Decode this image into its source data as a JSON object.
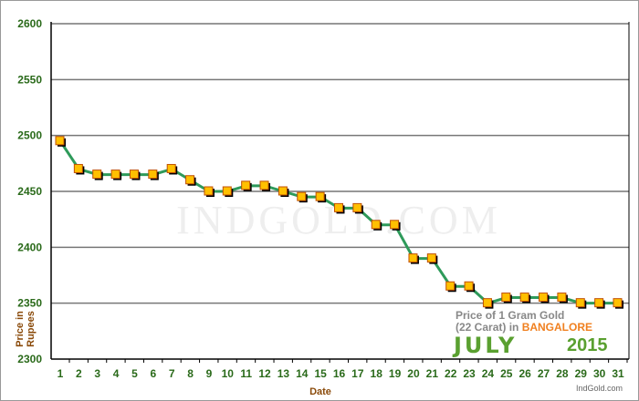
{
  "chart_data": {
    "type": "line",
    "xlabel": "Date",
    "ylabel": "Price in Rupees",
    "ylim": [
      2300,
      2600
    ],
    "yticks": [
      2300,
      2350,
      2400,
      2450,
      2500,
      2550,
      2600
    ],
    "grid": true,
    "x": [
      1,
      2,
      3,
      4,
      5,
      6,
      7,
      8,
      9,
      10,
      11,
      12,
      13,
      14,
      15,
      16,
      17,
      18,
      19,
      20,
      21,
      22,
      23,
      24,
      25,
      26,
      27,
      28,
      29,
      30,
      31
    ],
    "values": [
      2495,
      2470,
      2465,
      2465,
      2465,
      2465,
      2470,
      2460,
      2450,
      2450,
      2455,
      2455,
      2450,
      2445,
      2445,
      2435,
      2435,
      2420,
      2420,
      2390,
      2390,
      2365,
      2365,
      2350,
      2355,
      2355,
      2355,
      2355,
      2350,
      2350,
      2350
    ],
    "line_color": "#2e9a5a",
    "marker_color": "#ffc000",
    "annotation": {
      "line1": "Price of 1 Gram Gold",
      "line2a": "(22 Carat) in ",
      "city": "BANGALORE",
      "month": "JULY",
      "year": "2015"
    },
    "watermark": "IndGold.com",
    "credit": "IndGold.com"
  }
}
